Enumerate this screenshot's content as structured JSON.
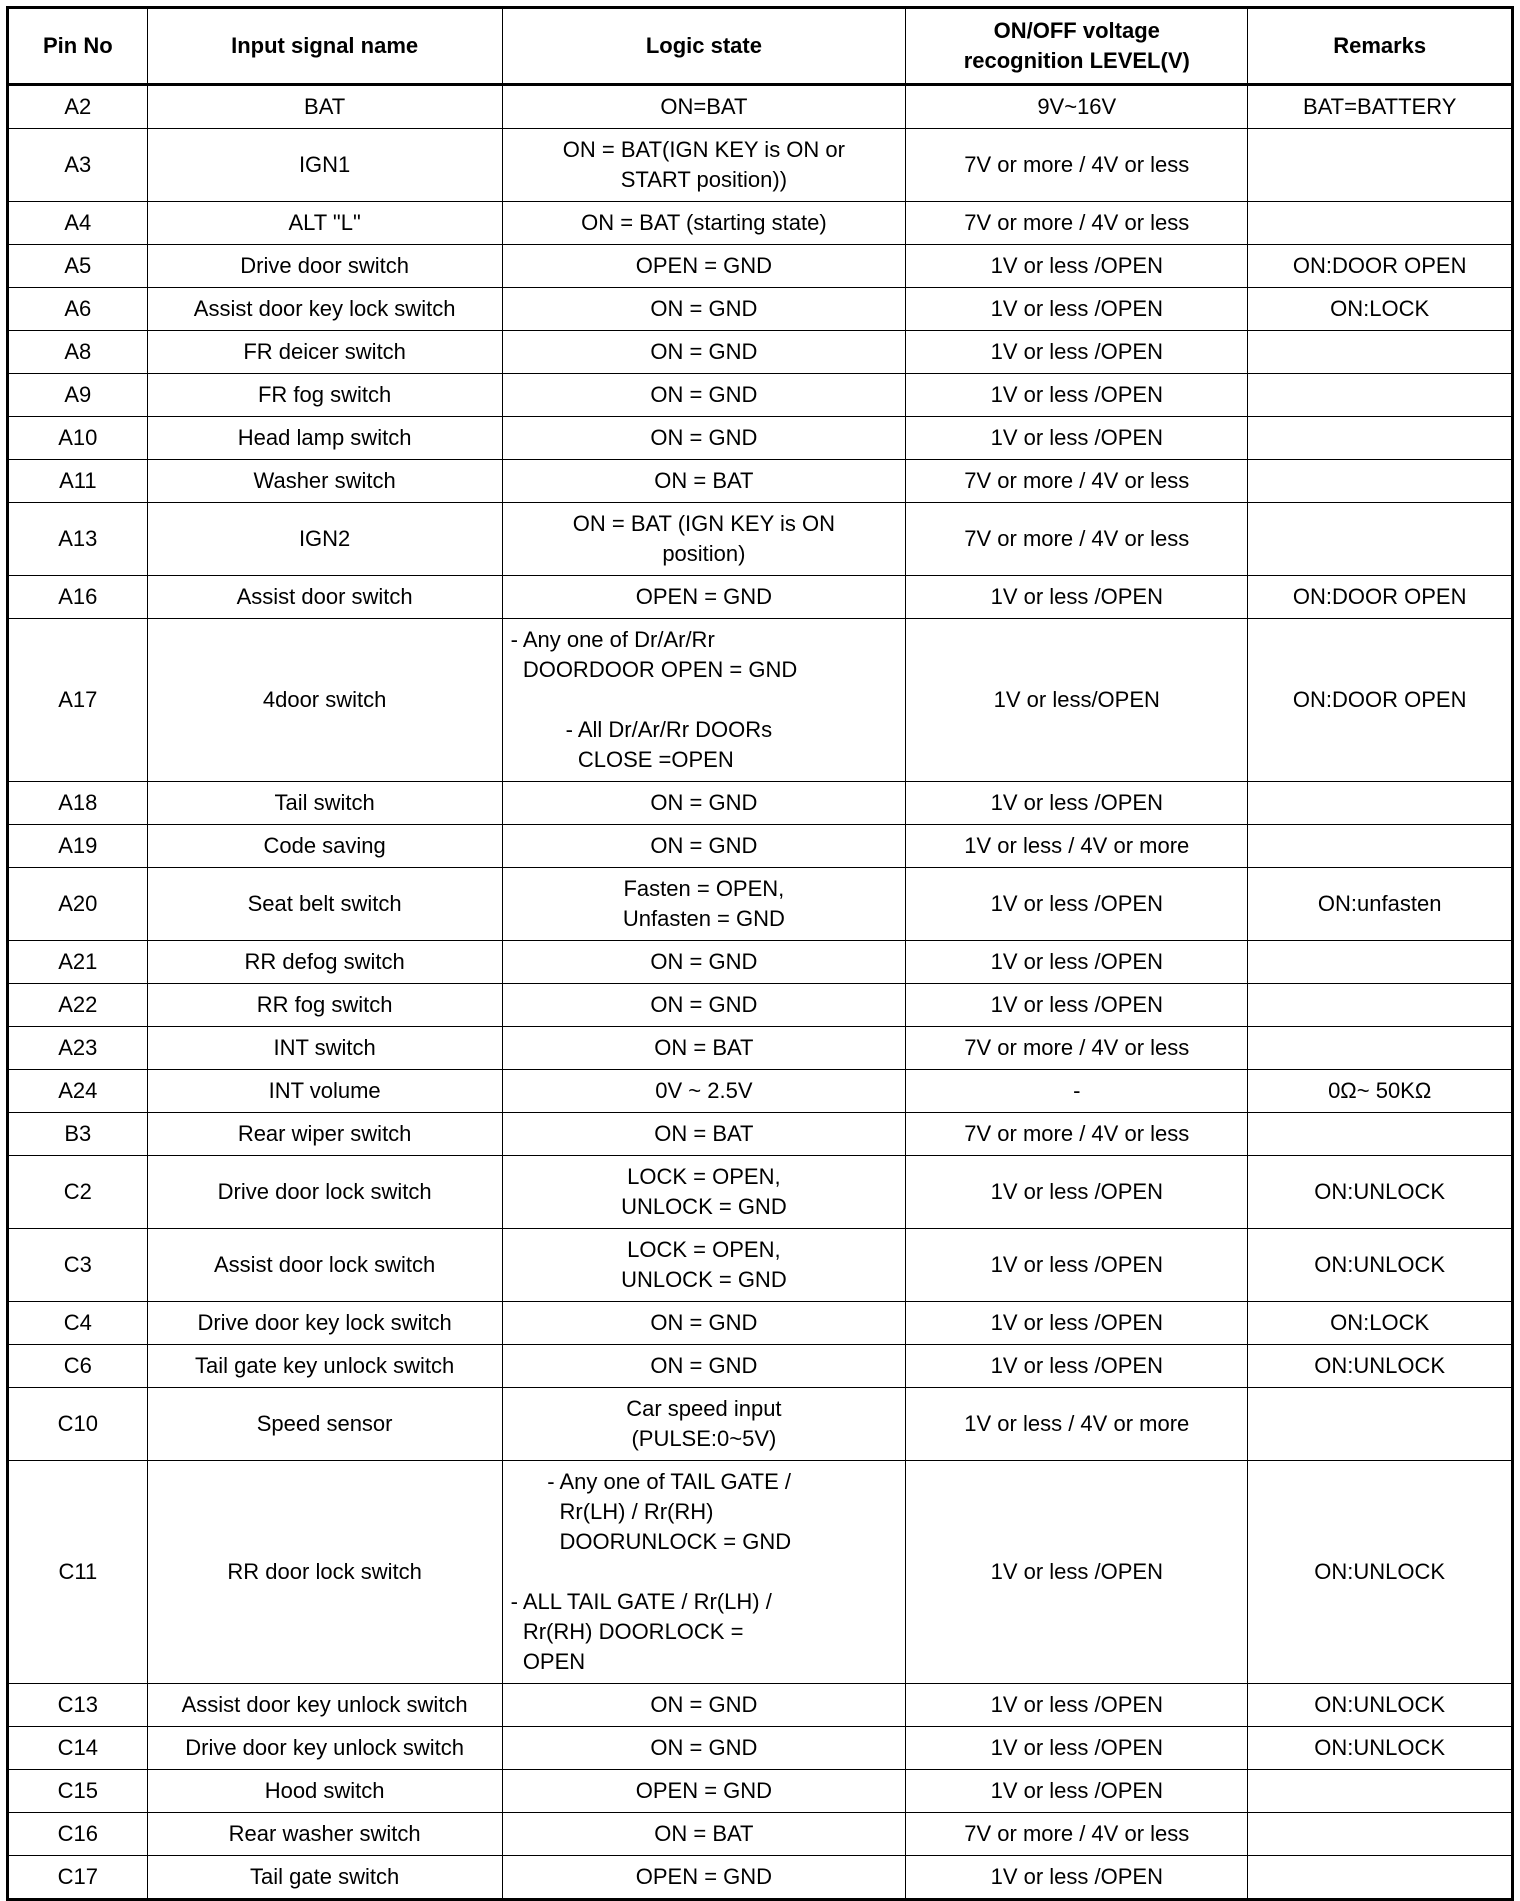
{
  "table": {
    "headers": [
      "Pin No",
      "Input signal name",
      "Logic state",
      "ON/OFF voltage\nrecognition LEVEL(V)",
      "Remarks"
    ],
    "rows": [
      {
        "pin": "A2",
        "name": "BAT",
        "logic": "ON=BAT",
        "level": "9V~16V",
        "remarks": "BAT=BATTERY"
      },
      {
        "pin": "A3",
        "name": "IGN1",
        "logic": "ON = BAT(IGN KEY is ON or\nSTART position))",
        "level": "7V or more / 4V or less",
        "remarks": ""
      },
      {
        "pin": "A4",
        "name": "ALT \"L\"",
        "logic": "ON = BAT (starting state)",
        "level": "7V or more / 4V or less",
        "remarks": ""
      },
      {
        "pin": "A5",
        "name": "Drive door switch",
        "logic": "OPEN = GND",
        "level": "1V or less /OPEN",
        "remarks": "ON:DOOR OPEN"
      },
      {
        "pin": "A6",
        "name": "Assist door key lock switch",
        "logic": "ON = GND",
        "level": "1V or less /OPEN",
        "remarks": "ON:LOCK"
      },
      {
        "pin": "A8",
        "name": "FR deicer switch",
        "logic": "ON = GND",
        "level": "1V or less /OPEN",
        "remarks": ""
      },
      {
        "pin": "A9",
        "name": "FR fog switch",
        "logic": "ON = GND",
        "level": "1V or less /OPEN",
        "remarks": ""
      },
      {
        "pin": "A10",
        "name": "Head lamp switch",
        "logic": "ON = GND",
        "level": "1V or less /OPEN",
        "remarks": ""
      },
      {
        "pin": "A11",
        "name": "Washer switch",
        "logic": "ON = BAT",
        "level": "7V or more / 4V or less",
        "remarks": ""
      },
      {
        "pin": "A13",
        "name": "IGN2",
        "logic": "ON = BAT (IGN KEY is ON\nposition)",
        "level": "7V or more / 4V or less",
        "remarks": ""
      },
      {
        "pin": "A16",
        "name": "Assist door switch",
        "logic": "OPEN = GND",
        "level": "1V or less /OPEN",
        "remarks": "ON:DOOR OPEN"
      },
      {
        "pin": "A17",
        "name": "4door switch",
        "logic": "- Any one of Dr/Ar/Rr\n  DOORDOOR OPEN = GND\n\n         - All Dr/Ar/Rr DOORs\n           CLOSE =OPEN",
        "level": "1V or less/OPEN",
        "remarks": "ON:DOOR OPEN",
        "pre": true
      },
      {
        "pin": "A18",
        "name": "Tail switch",
        "logic": "ON = GND",
        "level": "1V or less /OPEN",
        "remarks": ""
      },
      {
        "pin": "A19",
        "name": "Code saving",
        "logic": "ON = GND",
        "level": "1V or less / 4V or more",
        "remarks": ""
      },
      {
        "pin": "A20",
        "name": "Seat belt switch",
        "logic": "Fasten = OPEN,\nUnfasten = GND",
        "level": "1V or less /OPEN",
        "remarks": "ON:unfasten"
      },
      {
        "pin": "A21",
        "name": "RR defog switch",
        "logic": "ON = GND",
        "level": "1V or less /OPEN",
        "remarks": ""
      },
      {
        "pin": "A22",
        "name": "RR fog switch",
        "logic": "ON = GND",
        "level": "1V or less /OPEN",
        "remarks": ""
      },
      {
        "pin": "A23",
        "name": "INT switch",
        "logic": "ON = BAT",
        "level": "7V or more / 4V or less",
        "remarks": ""
      },
      {
        "pin": "A24",
        "name": "INT volume",
        "logic": "0V ~ 2.5V",
        "level": "-",
        "remarks": "0Ω~ 50KΩ"
      },
      {
        "pin": "B3",
        "name": "Rear wiper switch",
        "logic": "ON = BAT",
        "level": "7V or more / 4V or less",
        "remarks": ""
      },
      {
        "pin": "C2",
        "name": "Drive door lock switch",
        "logic": "LOCK = OPEN,\nUNLOCK = GND",
        "level": "1V or less /OPEN",
        "remarks": "ON:UNLOCK"
      },
      {
        "pin": "C3",
        "name": "Assist door lock switch",
        "logic": "LOCK = OPEN,\nUNLOCK = GND",
        "level": "1V or less /OPEN",
        "remarks": "ON:UNLOCK"
      },
      {
        "pin": "C4",
        "name": "Drive door key lock switch",
        "logic": "ON = GND",
        "level": "1V or less /OPEN",
        "remarks": "ON:LOCK"
      },
      {
        "pin": "C6",
        "name": "Tail gate key unlock switch",
        "logic": "ON = GND",
        "level": "1V or less /OPEN",
        "remarks": "ON:UNLOCK"
      },
      {
        "pin": "C10",
        "name": "Speed sensor",
        "logic": "Car speed input\n(PULSE:0~5V)",
        "level": "1V or less / 4V or more",
        "remarks": ""
      },
      {
        "pin": "C11",
        "name": "RR door lock switch",
        "logic": "      - Any one of TAIL GATE /\n        Rr(LH) / Rr(RH)\n        DOORUNLOCK = GND\n\n- ALL TAIL GATE / Rr(LH) /\n  Rr(RH) DOORLOCK =\n  OPEN",
        "level": "1V or less /OPEN",
        "remarks": "ON:UNLOCK",
        "pre": true
      },
      {
        "pin": "C13",
        "name": "Assist door key unlock switch",
        "logic": "ON = GND",
        "level": "1V or less /OPEN",
        "remarks": "ON:UNLOCK"
      },
      {
        "pin": "C14",
        "name": "Drive door key unlock switch",
        "logic": "ON = GND",
        "level": "1V or less /OPEN",
        "remarks": "ON:UNLOCK"
      },
      {
        "pin": "C15",
        "name": "Hood switch",
        "logic": "OPEN = GND",
        "level": "1V or less /OPEN",
        "remarks": ""
      },
      {
        "pin": "C16",
        "name": "Rear washer switch",
        "logic": "ON = BAT",
        "level": "7V or more / 4V or less",
        "remarks": ""
      },
      {
        "pin": "C17",
        "name": "Tail gate switch",
        "logic": "OPEN = GND",
        "level": "1V or less /OPEN",
        "remarks": ""
      }
    ]
  }
}
